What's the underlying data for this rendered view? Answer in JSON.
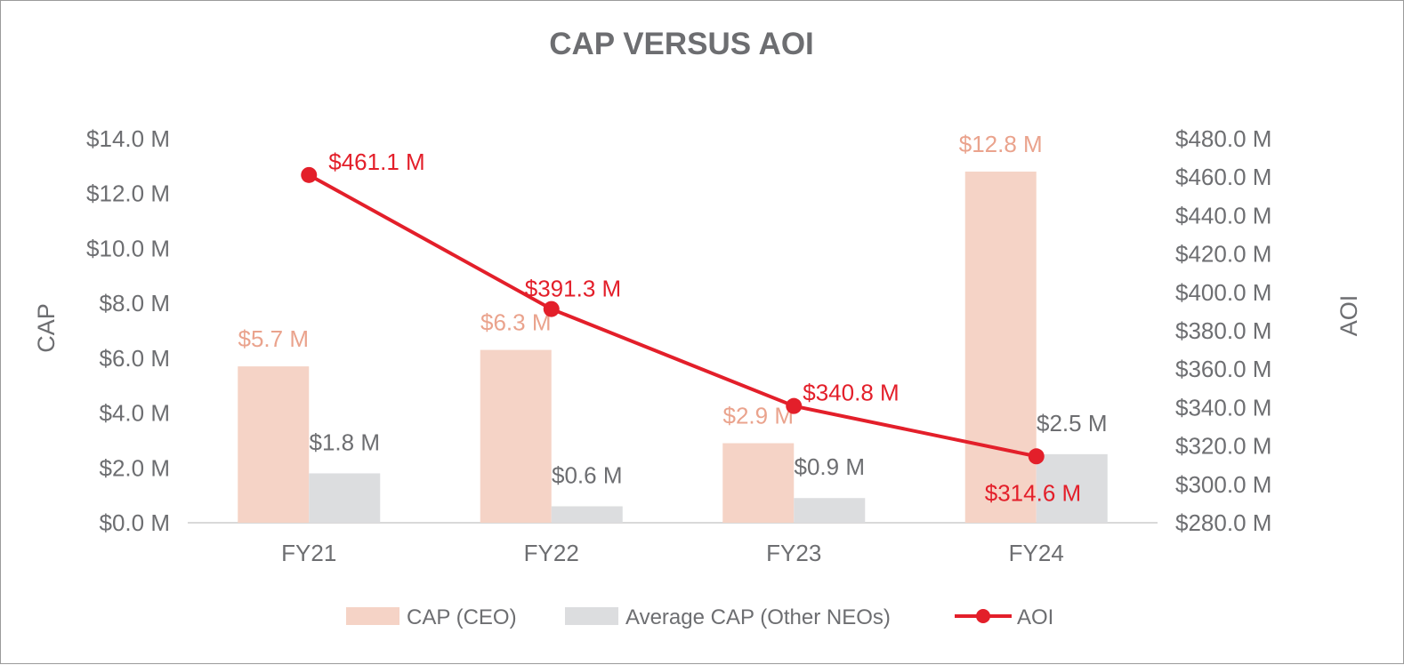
{
  "chart_data": {
    "type": "bar",
    "title": "CAP VERSUS AOI",
    "categories": [
      "FY21",
      "FY22",
      "FY23",
      "FY24"
    ],
    "y_left": {
      "label": "CAP",
      "range": [
        0,
        14
      ],
      "ticks": [
        0,
        2,
        4,
        6,
        8,
        10,
        12,
        14
      ],
      "tick_labels": [
        "$0.0 M",
        "$2.0 M",
        "$4.0 M",
        "$6.0 M",
        "$8.0 M",
        "$10.0 M",
        "$12.0 M",
        "$14.0 M"
      ]
    },
    "y_right": {
      "label": "AOI",
      "range": [
        280,
        480
      ],
      "ticks": [
        280,
        300,
        320,
        340,
        360,
        380,
        400,
        420,
        440,
        460,
        480
      ],
      "tick_labels": [
        "$280.0 M",
        "$300.0 M",
        "$320.0 M",
        "$340.0 M",
        "$360.0 M",
        "$380.0 M",
        "$400.0 M",
        "$420.0 M",
        "$440.0 M",
        "$460.0 M",
        "$480.0 M"
      ]
    },
    "series": [
      {
        "name": "CAP (CEO)",
        "kind": "bar",
        "axis": "left",
        "color": "#f5d3c6",
        "label_color": "#eaa38d",
        "values": [
          5.7,
          6.3,
          2.9,
          12.8
        ],
        "labels": [
          "$5.7 M",
          "$6.3 M",
          "$2.9 M",
          "$12.8 M"
        ]
      },
      {
        "name": "Average CAP (Other NEOs)",
        "kind": "bar",
        "axis": "left",
        "color": "#dcdddf",
        "label_color": "#6d6e71",
        "values": [
          1.8,
          0.6,
          0.9,
          2.5
        ],
        "labels": [
          "$1.8 M",
          "$0.6 M",
          "$0.9 M",
          "$2.5 M"
        ]
      },
      {
        "name": "AOI",
        "kind": "line",
        "axis": "right",
        "color": "#e31f2a",
        "label_color": "#e31f2a",
        "values": [
          461.1,
          391.3,
          340.8,
          314.6
        ],
        "labels": [
          "$461.1 M",
          "$391.3 M",
          "$340.8 M",
          "$314.6 M"
        ]
      }
    ],
    "legend_position": "bottom",
    "grid": false
  }
}
